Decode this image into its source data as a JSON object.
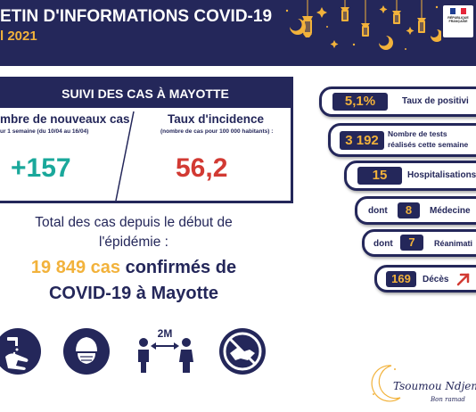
{
  "header": {
    "title": "ETIN D'INFORMATIONS COVID-19",
    "date": "l 2021",
    "small_text": "",
    "logo_flag_colors": [
      "#1f3f93",
      "#ffffff",
      "#e5263a"
    ],
    "logo_text": "RÉPUBLIQUE FRANÇAISE"
  },
  "suivi": {
    "heading": "SUIVI DES CAS À MAYOTTE",
    "new_cases": {
      "title": "mbre de nouveaux cas",
      "subtitle": "ur 1 semaine (du 10/04 au 16/04)",
      "value": "+157",
      "color": "#1aa89b"
    },
    "incidence": {
      "title": "Taux d'incidence",
      "subtitle": "(nombre de cas pour 100 000 habitants) :",
      "value": "56,2",
      "color": "#d23a33"
    }
  },
  "total": {
    "line1": "Total des cas depuis le début de",
    "line2": "l'épidémie :",
    "highlight": "19 849 cas",
    "line3_rest": " confirmés de",
    "line4": "COVID-19 à Mayotte"
  },
  "icons": [
    "hand-washing-icon",
    "mask-icon",
    "distance-2m-icon",
    "no-handshake-icon"
  ],
  "distance_label": "2M",
  "stats": {
    "positivity": {
      "value": "5,1%",
      "label": "Taux de positivi"
    },
    "tests": {
      "value": "3 192",
      "label_line1": "Nombre de tests",
      "label_line2": "réalisés cette semaine"
    },
    "hospital": {
      "value": "15",
      "label": "Hospitalisations"
    },
    "medicine": {
      "prefix": "dont",
      "value": "8",
      "label": "Médecine"
    },
    "reanimation": {
      "prefix": "dont",
      "value": "7",
      "label": "Réanimati"
    },
    "deaths": {
      "value": "169",
      "label": "Décès",
      "trend": "up",
      "trend_color": "#d23a33"
    }
  },
  "footer": {
    "signature": "Tsoumou Ndjema n",
    "signature_sub": "Bon ramad"
  },
  "colors": {
    "navy": "#24275a",
    "gold": "#f2b23b",
    "teal": "#1aa89b",
    "red": "#d23a33"
  }
}
